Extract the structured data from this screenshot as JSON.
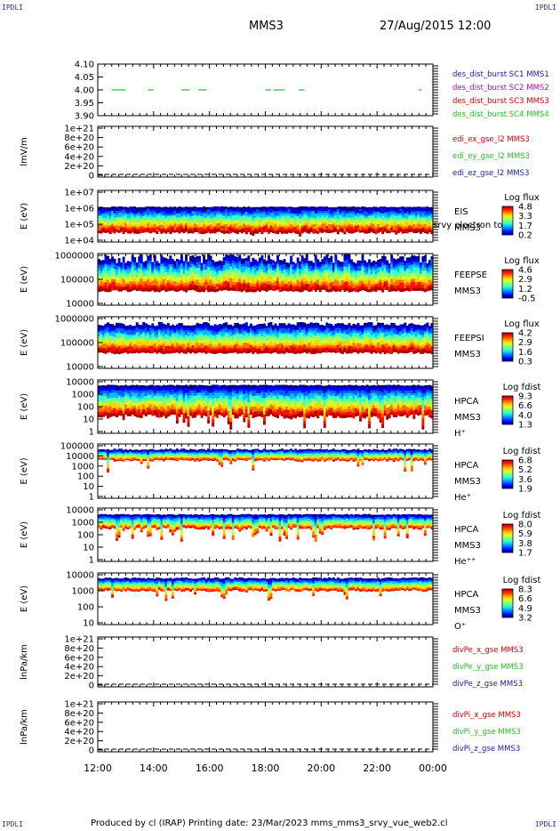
{
  "corner_labels": {
    "top_left": "IPDLI",
    "top_right": "IPDLI",
    "bottom_left": "IPDLI",
    "bottom_right": "IPDLI"
  },
  "header": {
    "spacecraft": "MMS3",
    "datetime": "27/Aug/2015 12:00"
  },
  "footer": {
    "text": "Produced by cl (IRAP)   Printing date: 23/Mar/2023   mms_mms3_srvy_vue_web2.cl"
  },
  "colors": {
    "grid": "#000000",
    "green": "#22c022",
    "red": "#d00000",
    "blue": "#1a1aa0",
    "magenta": "#c000c0"
  },
  "chart_data": [
    {
      "id": "sc",
      "type": "scatter",
      "yticks": [
        "4.10",
        "4.05",
        "4.00",
        "3.95",
        "3.90"
      ],
      "ylim": [
        3.9,
        4.1
      ],
      "legend": [
        {
          "text": "des_dist_burst SC1 MMS1",
          "color": "#1a1aa0"
        },
        {
          "text": "des_dist_burst SC2 MMS2",
          "color": "#c000c0"
        },
        {
          "text": "des_dist_burst SC3 MMS3",
          "color": "#d00000"
        },
        {
          "text": "des_dist_burst SC4 MMS4",
          "color": "#22c022"
        }
      ],
      "segments_hours": [
        [
          12.5,
          13.0
        ],
        [
          13.8,
          14.0
        ],
        [
          15.0,
          15.3
        ],
        [
          15.6,
          15.9
        ],
        [
          18.0,
          18.2
        ],
        [
          18.3,
          18.7
        ],
        [
          19.2,
          19.4
        ],
        [
          23.5,
          23.6
        ]
      ],
      "segment_value": 4.0
    },
    {
      "id": "edi",
      "type": "line",
      "ylabel": "lmV/m",
      "yticks": [
        "1e+21",
        "8e+20",
        "6e+20",
        "4e+20",
        "2e+20",
        "0"
      ],
      "legend": [
        {
          "text": "edi_ex_gse_l2 MMS3",
          "color": "#d00000"
        },
        {
          "text": "edi_ey_gse_l2 MMS3",
          "color": "#22c022"
        },
        {
          "text": "edi_ez_gse_l2 MMS3",
          "color": "#1a1aa0"
        }
      ]
    },
    {
      "id": "eis",
      "type": "heatmap",
      "ylabel": "E (eV)",
      "yticks": [
        "1e+07",
        "1e+06",
        "1e+05",
        "1e+04"
      ],
      "labels": [
        "EIS",
        "MMS3"
      ],
      "overlay": "srvy electron to",
      "cbar_title": "Log flux",
      "cbar_ticks": [
        "4.8",
        "3.3",
        "1.7",
        "0.2"
      ]
    },
    {
      "id": "feepse",
      "type": "heatmap",
      "ylabel": "E (eV)",
      "yticks": [
        "1000000",
        "100000",
        "10000"
      ],
      "labels": [
        "FEEPSE",
        "MMS3"
      ],
      "cbar_title": "Log flux",
      "cbar_ticks": [
        "4.6",
        "2.9",
        "1.2",
        "-0.5"
      ]
    },
    {
      "id": "feepsi",
      "type": "heatmap",
      "ylabel": "E (eV)",
      "yticks": [
        "1000000",
        "100000",
        "10000"
      ],
      "labels": [
        "FEEPSI",
        "MMS3"
      ],
      "cbar_title": "Log flux",
      "cbar_ticks": [
        "4.2",
        "2.9",
        "1.6",
        "0.3"
      ]
    },
    {
      "id": "hpca_h",
      "type": "heatmap",
      "ylabel": "E (eV)",
      "yticks": [
        "10000",
        "1000",
        "100",
        "10",
        "1"
      ],
      "labels": [
        "HPCA",
        "MMS3",
        "H⁺"
      ],
      "cbar_title": "Log fdist",
      "cbar_ticks": [
        "9.3",
        "6.6",
        "4.0",
        "1.3"
      ]
    },
    {
      "id": "hpca_he",
      "type": "heatmap",
      "ylabel": "E (eV)",
      "yticks": [
        "100000",
        "10000",
        "1000",
        "100",
        "10",
        "1"
      ],
      "labels": [
        "HPCA",
        "MMS3",
        "He⁺"
      ],
      "cbar_title": "Log fdist",
      "cbar_ticks": [
        "6.8",
        "5.2",
        "3.6",
        "1.9"
      ]
    },
    {
      "id": "hpca_hepp",
      "type": "heatmap",
      "ylabel": "E (eV)",
      "yticks": [
        "10000",
        "1000",
        "100",
        "10",
        "1"
      ],
      "labels": [
        "HPCA",
        "MMS3",
        "He⁺⁺"
      ],
      "cbar_title": "Log fdist",
      "cbar_ticks": [
        "8.0",
        "5.9",
        "3.8",
        "1.7"
      ]
    },
    {
      "id": "hpca_o",
      "type": "heatmap",
      "ylabel": "E (eV)",
      "yticks": [
        "10000",
        "1000",
        "100",
        "10"
      ],
      "labels": [
        "HPCA",
        "MMS3",
        "O⁺"
      ],
      "cbar_title": "Log fdist",
      "cbar_ticks": [
        "8.3",
        "6.6",
        "4.9",
        "3.2"
      ]
    },
    {
      "id": "divpe",
      "type": "line",
      "ylabel": "lnPa/km",
      "yticks": [
        "1e+21",
        "8e+20",
        "6e+20",
        "4e+20",
        "2e+20",
        "0"
      ],
      "legend": [
        {
          "text": "divPe_x_gse MMS3",
          "color": "#d00000"
        },
        {
          "text": "divPe_y_gse MMS3",
          "color": "#22c022"
        },
        {
          "text": "divPe_z_gse MMS3",
          "color": "#1a1aa0"
        }
      ]
    },
    {
      "id": "divpi",
      "type": "line",
      "ylabel": "lnPa/km",
      "yticks": [
        "1e+21",
        "8e+20",
        "6e+20",
        "4e+20",
        "2e+20",
        "0"
      ],
      "legend": [
        {
          "text": "divPi_x_gse MMS3",
          "color": "#d00000"
        },
        {
          "text": "divPi_y_gse MMS3",
          "color": "#22c022"
        },
        {
          "text": "divPi_z_gse MMS3",
          "color": "#1a1aa0"
        }
      ]
    }
  ],
  "xaxis": {
    "ticks": [
      "12:00",
      "14:00",
      "16:00",
      "18:00",
      "20:00",
      "22:00",
      "00:00"
    ],
    "range_hours": [
      12,
      24
    ]
  }
}
